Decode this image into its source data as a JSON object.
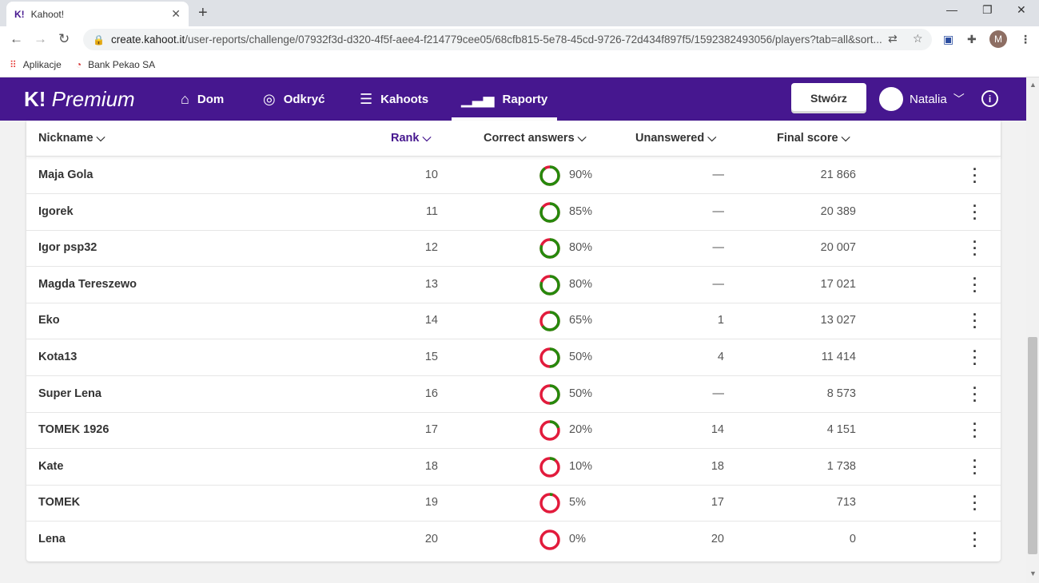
{
  "browser": {
    "tab_title": "Kahoot!",
    "tab_favicon": "K!",
    "url_host": "create.kahoot.it",
    "url_path": "/user-reports/challenge/07932f3d-d320-4f5f-aee4-f214779cee05/68cfb815-5e78-45cd-9726-72d434f897f5/1592382493056/players?tab=all&sort...",
    "profile_initial": "M",
    "bookmarks": [
      "Aplikacje",
      "Bank Pekao SA"
    ]
  },
  "header": {
    "logo_mark": "K!",
    "logo_text": "Premium",
    "nav": [
      {
        "label": "Dom",
        "icon": "home-icon"
      },
      {
        "label": "Odkryć",
        "icon": "compass-icon"
      },
      {
        "label": "Kahoots",
        "icon": "list-icon"
      },
      {
        "label": "Raporty",
        "icon": "bar-chart-icon"
      }
    ],
    "create_label": "Stwórz",
    "user_name": "Natalia"
  },
  "table": {
    "headers": {
      "nickname": "Nickname",
      "rank": "Rank",
      "correct": "Correct answers",
      "unanswered": "Unanswered",
      "score": "Final score"
    },
    "rows": [
      {
        "name": "Maja Gola",
        "rank": "10",
        "correct_pct": "90%",
        "correct_frac": 0.9,
        "unanswered": "—",
        "score": "21 866"
      },
      {
        "name": "Igorek",
        "rank": "11",
        "correct_pct": "85%",
        "correct_frac": 0.85,
        "unanswered": "—",
        "score": "20 389"
      },
      {
        "name": "Igor psp32",
        "rank": "12",
        "correct_pct": "80%",
        "correct_frac": 0.8,
        "unanswered": "—",
        "score": "20 007"
      },
      {
        "name": "Magda Tereszewo",
        "rank": "13",
        "correct_pct": "80%",
        "correct_frac": 0.8,
        "unanswered": "—",
        "score": "17 021"
      },
      {
        "name": "Eko",
        "rank": "14",
        "correct_pct": "65%",
        "correct_frac": 0.65,
        "unanswered": "1",
        "score": "13 027"
      },
      {
        "name": "Kota13",
        "rank": "15",
        "correct_pct": "50%",
        "correct_frac": 0.5,
        "unanswered": "4",
        "score": "11 414"
      },
      {
        "name": "Super Lena",
        "rank": "16",
        "correct_pct": "50%",
        "correct_frac": 0.5,
        "unanswered": "—",
        "score": "8 573"
      },
      {
        "name": "TOMEK 1926",
        "rank": "17",
        "correct_pct": "20%",
        "correct_frac": 0.2,
        "unanswered": "14",
        "score": "4 151"
      },
      {
        "name": "Kate",
        "rank": "18",
        "correct_pct": "10%",
        "correct_frac": 0.1,
        "unanswered": "18",
        "score": "1 738"
      },
      {
        "name": "TOMEK",
        "rank": "19",
        "correct_pct": "5%",
        "correct_frac": 0.05,
        "unanswered": "17",
        "score": "713"
      },
      {
        "name": "Lena",
        "rank": "20",
        "correct_pct": "0%",
        "correct_frac": 0.0,
        "unanswered": "20",
        "score": "0"
      }
    ]
  },
  "colors": {
    "brand": "#46178f",
    "correct": "#26890c",
    "incorrect": "#e21b3c"
  }
}
